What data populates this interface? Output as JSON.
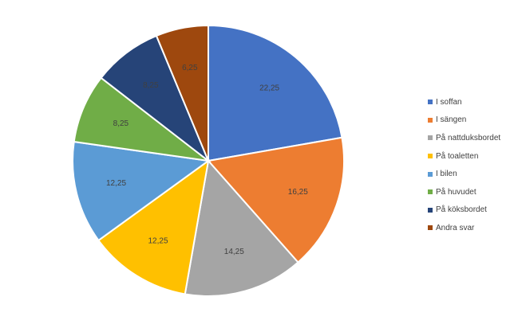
{
  "chart_data": {
    "type": "pie",
    "categories": [
      "I soffan",
      "I sängen",
      "På nattduksbordet",
      "På toaletten",
      "I bilen",
      "På huvudet",
      "På köksbordet",
      "Andra svar"
    ],
    "values": [
      22.25,
      16.25,
      14.25,
      12.25,
      12.25,
      8.25,
      8.25,
      6.25
    ],
    "data_labels": [
      "22,25",
      "16,25",
      "14,25",
      "12,25",
      "12,25",
      "8,25",
      "8,25",
      "6,25"
    ],
    "colors": [
      "#4472C4",
      "#ED7D31",
      "#A5A5A5",
      "#FFC000",
      "#5B9BD5",
      "#70AD47",
      "#264478",
      "#9E480E"
    ],
    "legend_position": "right",
    "start_angle": "12 o'clock",
    "direction": "clockwise"
  }
}
